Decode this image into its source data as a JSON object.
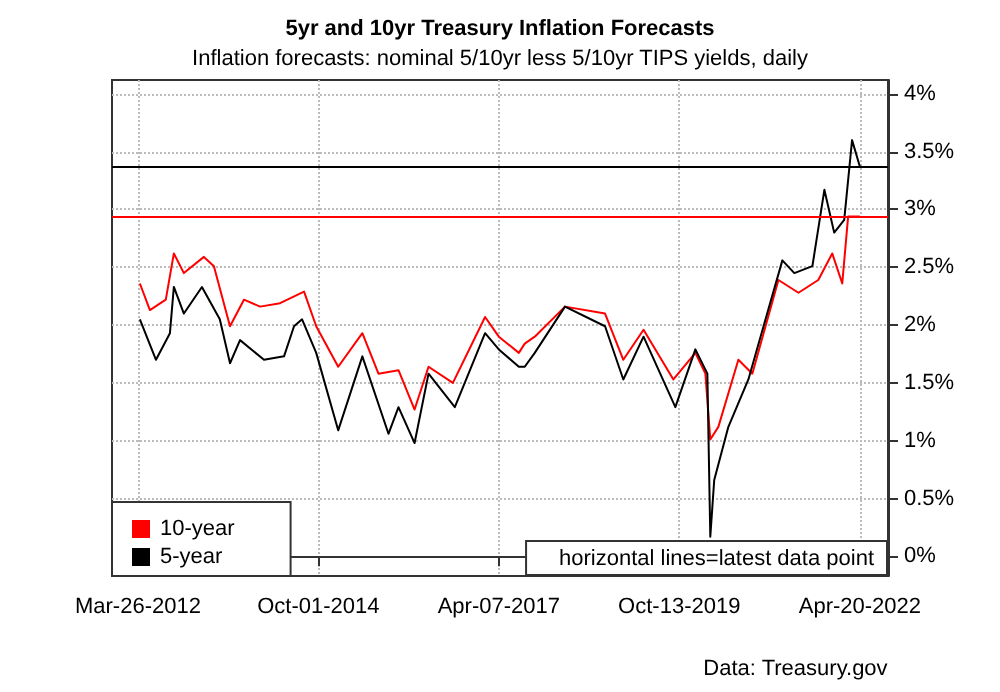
{
  "chart_data": {
    "type": "line",
    "title": "5yr and 10yr Treasury Inflation Forecasts",
    "subtitle": "Inflation forecasts: nominal 5/10yr less 5/10yr TIPS yields, daily",
    "annotations": [
      "horizontal lines=latest data point",
      "Data: Treasury.gov"
    ],
    "series": [
      {
        "name": "10-year",
        "color": "#ff0000",
        "x": [
          "2012-04-05",
          "2012-05-26",
          "2012-08-15",
          "2012-09-25",
          "2012-11-15",
          "2013-02-25",
          "2013-04-17",
          "2013-07-08",
          "2013-09-17",
          "2013-12-08",
          "2014-03-20",
          "2014-07-20",
          "2014-09-20",
          "2015-01-10",
          "2015-05-13",
          "2015-08-03",
          "2015-11-13",
          "2016-02-03",
          "2016-04-14",
          "2016-08-16",
          "2017-01-27",
          "2017-04-07",
          "2017-07-18",
          "2017-08-17",
          "2017-10-07",
          "2018-03-10",
          "2018-09-30",
          "2019-01-01",
          "2019-04-14",
          "2019-09-13",
          "2020-01-03",
          "2020-02-23",
          "2020-03-19",
          "2020-04-29",
          "2020-08-09",
          "2020-10-19",
          "2021-03-01",
          "2021-06-11",
          "2021-09-20",
          "2021-11-30",
          "2022-01-20",
          "2022-02-19",
          "2022-04-20"
        ],
        "values": [
          2.36,
          2.13,
          2.22,
          2.62,
          2.45,
          2.59,
          2.51,
          1.99,
          2.22,
          2.16,
          2.19,
          2.29,
          1.99,
          1.64,
          1.93,
          1.58,
          1.61,
          1.27,
          1.64,
          1.5,
          2.07,
          1.9,
          1.76,
          1.84,
          1.9,
          2.16,
          2.1,
          1.7,
          1.96,
          1.53,
          1.76,
          1.58,
          1.01,
          1.12,
          1.7,
          1.58,
          2.39,
          2.28,
          2.39,
          2.62,
          2.36,
          2.94,
          2.94
        ]
      },
      {
        "name": "5-year",
        "color": "#000000",
        "x": [
          "2012-04-05",
          "2012-06-26",
          "2012-09-05",
          "2012-09-25",
          "2012-11-15",
          "2013-02-15",
          "2013-05-17",
          "2013-07-08",
          "2013-08-28",
          "2013-12-28",
          "2014-04-09",
          "2014-05-30",
          "2014-07-10",
          "2014-09-20",
          "2015-01-10",
          "2015-05-13",
          "2015-09-23",
          "2015-11-13",
          "2016-02-03",
          "2016-04-14",
          "2016-08-26",
          "2017-01-27",
          "2017-04-07",
          "2017-07-18",
          "2017-08-17",
          "2017-10-07",
          "2018-03-10",
          "2018-09-30",
          "2019-01-01",
          "2019-04-14",
          "2019-09-23",
          "2020-01-03",
          "2020-03-04",
          "2020-03-19",
          "2020-04-08",
          "2020-06-19",
          "2020-09-29",
          "2021-03-21",
          "2021-05-21",
          "2021-08-21",
          "2021-10-21",
          "2021-12-10",
          "2022-01-30",
          "2022-03-11",
          "2022-04-20"
        ],
        "values": [
          2.05,
          1.7,
          1.93,
          2.33,
          2.1,
          2.33,
          2.05,
          1.67,
          1.87,
          1.7,
          1.73,
          1.99,
          2.05,
          1.76,
          1.09,
          1.73,
          1.06,
          1.29,
          0.98,
          1.58,
          1.29,
          1.93,
          1.79,
          1.64,
          1.64,
          1.76,
          2.16,
          1.99,
          1.53,
          1.9,
          1.29,
          1.79,
          1.58,
          0.17,
          0.66,
          1.12,
          1.53,
          2.56,
          2.45,
          2.51,
          3.17,
          2.8,
          2.91,
          3.6,
          3.37
        ]
      }
    ],
    "xlim": [
      "2011-11-15",
      "2022-09-10"
    ],
    "xticks": [
      {
        "value": "2012-03-26",
        "label": "Mar-26-2012"
      },
      {
        "value": "2014-10-01",
        "label": "Oct-01-2014"
      },
      {
        "value": "2017-04-07",
        "label": "Apr-07-2017"
      },
      {
        "value": "2019-10-13",
        "label": "Oct-13-2019"
      },
      {
        "value": "2022-04-20",
        "label": "Apr-20-2022"
      }
    ],
    "ylim": [
      -0.17,
      4.12
    ],
    "yticks": [
      {
        "value": 0,
        "label": "0%"
      },
      {
        "value": 0.5,
        "label": "0.5%"
      },
      {
        "value": 1,
        "label": "1%"
      },
      {
        "value": 1.5,
        "label": "1.5%"
      },
      {
        "value": 2,
        "label": "2%"
      },
      {
        "value": 2.5,
        "label": "2.5%"
      },
      {
        "value": 3,
        "label": "3%"
      },
      {
        "value": 3.5,
        "label": "3.5%"
      },
      {
        "value": 4,
        "label": "4%"
      }
    ],
    "ref_lines": [
      {
        "axis": "y",
        "value": 3.37,
        "color": "#000000"
      },
      {
        "axis": "y",
        "value": 2.94,
        "color": "#ff0000"
      }
    ],
    "grid": true,
    "legend": "bottom left",
    "marker": "none",
    "line_style": "solid"
  }
}
